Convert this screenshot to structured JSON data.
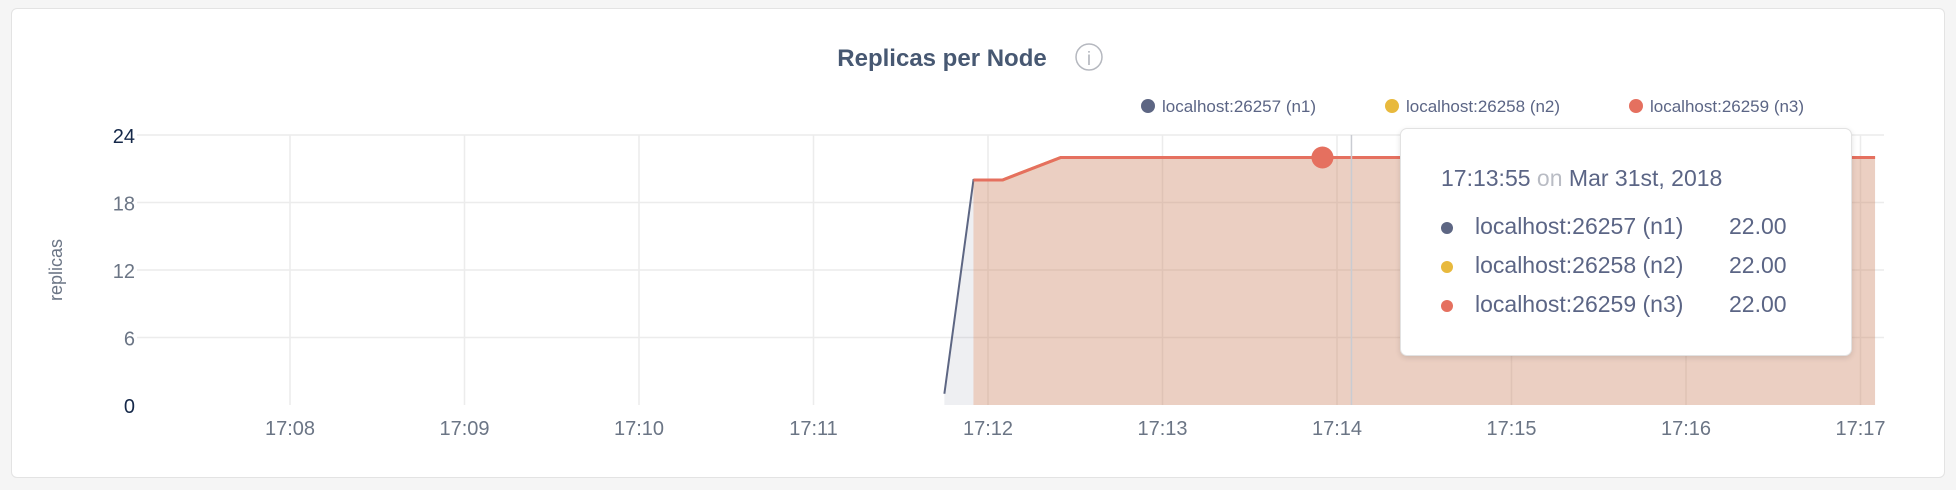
{
  "chart_data": {
    "type": "area",
    "title": "Replicas per Node",
    "ylabel": "replicas",
    "xlabel": "",
    "ylim": [
      0,
      24
    ],
    "yticks": [
      "0",
      "6",
      "12",
      "18",
      "24"
    ],
    "xticks": [
      "17:08",
      "17:09",
      "17:10",
      "17:11",
      "17:12",
      "17:13",
      "17:14",
      "17:15",
      "17:16",
      "17:17"
    ],
    "xlim": [
      "17:07:25",
      "17:17:08"
    ],
    "grid": true,
    "legend_position": "top-right",
    "series": [
      {
        "name": "localhost:26257 (n1)",
        "color": "#5d6683",
        "x": [
          "17:11:45",
          "17:11:55",
          "17:12:05",
          "17:12:25",
          "17:17:05"
        ],
        "values": [
          1,
          20,
          20,
          22,
          22
        ]
      },
      {
        "name": "localhost:26258 (n2)",
        "color": "#e8b93d",
        "x": [
          "17:11:55",
          "17:12:05",
          "17:12:25",
          "17:17:05"
        ],
        "values": [
          20,
          20,
          22,
          22
        ]
      },
      {
        "name": "localhost:26259 (n3)",
        "color": "#e5705f",
        "x": [
          "17:11:55",
          "17:12:05",
          "17:12:25",
          "17:17:05"
        ],
        "values": [
          20,
          20,
          22,
          22
        ]
      }
    ],
    "hover": {
      "x": "17:13:55",
      "value": 22
    }
  },
  "info_icon": "info-icon",
  "tooltip": {
    "time": "17:13:55",
    "on": "on",
    "date": "Mar 31st, 2018",
    "rows": [
      {
        "label": "localhost:26257 (n1)",
        "value": "22.00",
        "color": "#5d6683"
      },
      {
        "label": "localhost:26258 (n2)",
        "value": "22.00",
        "color": "#e8b93d"
      },
      {
        "label": "localhost:26259 (n3)",
        "value": "22.00",
        "color": "#e5705f"
      }
    ]
  }
}
